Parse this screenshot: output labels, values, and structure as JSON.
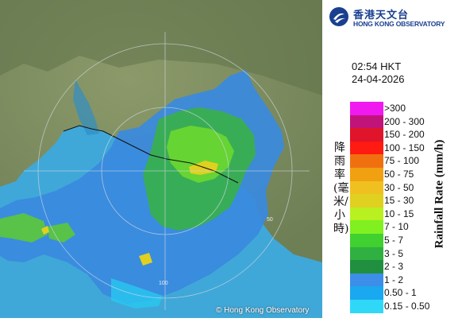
{
  "header": {
    "org_name_cn": "香港天文台",
    "org_name_en": "HONG KONG OBSERVATORY"
  },
  "timestamp": {
    "time": "02:54 HKT",
    "date": "24-04-2026"
  },
  "legend": {
    "title_cn": "降雨率(毫米/小時)",
    "title_en": "Rainfall Rate (mm/h)",
    "items": [
      {
        "label": ">300",
        "color": "#f01af0"
      },
      {
        "label": "200 - 300",
        "color": "#c0147a"
      },
      {
        "label": "150 - 200",
        "color": "#e0142a"
      },
      {
        "label": "100 - 150",
        "color": "#ff1a12"
      },
      {
        "label": "75 - 100",
        "color": "#f07010"
      },
      {
        "label": "50 - 75",
        "color": "#f0a010"
      },
      {
        "label": "30 - 50",
        "color": "#f0c020"
      },
      {
        "label": "15 - 30",
        "color": "#e0d020"
      },
      {
        "label": "10 - 15",
        "color": "#b8f020"
      },
      {
        "label": "7 - 10",
        "color": "#80f020"
      },
      {
        "label": "5 - 7",
        "color": "#40d030"
      },
      {
        "label": "3 - 5",
        "color": "#30b040"
      },
      {
        "label": "2 - 3",
        "color": "#209040"
      },
      {
        "label": "1 - 2",
        "color": "#3c8ee8"
      },
      {
        "label": "0.50 - 1",
        "color": "#1aa8f0"
      },
      {
        "label": "0.15 - 0.50",
        "color": "#30d8f8"
      }
    ]
  },
  "map": {
    "range_ring_labels": [
      "100",
      "50"
    ],
    "copyright": "© Hong Kong Observatory"
  }
}
